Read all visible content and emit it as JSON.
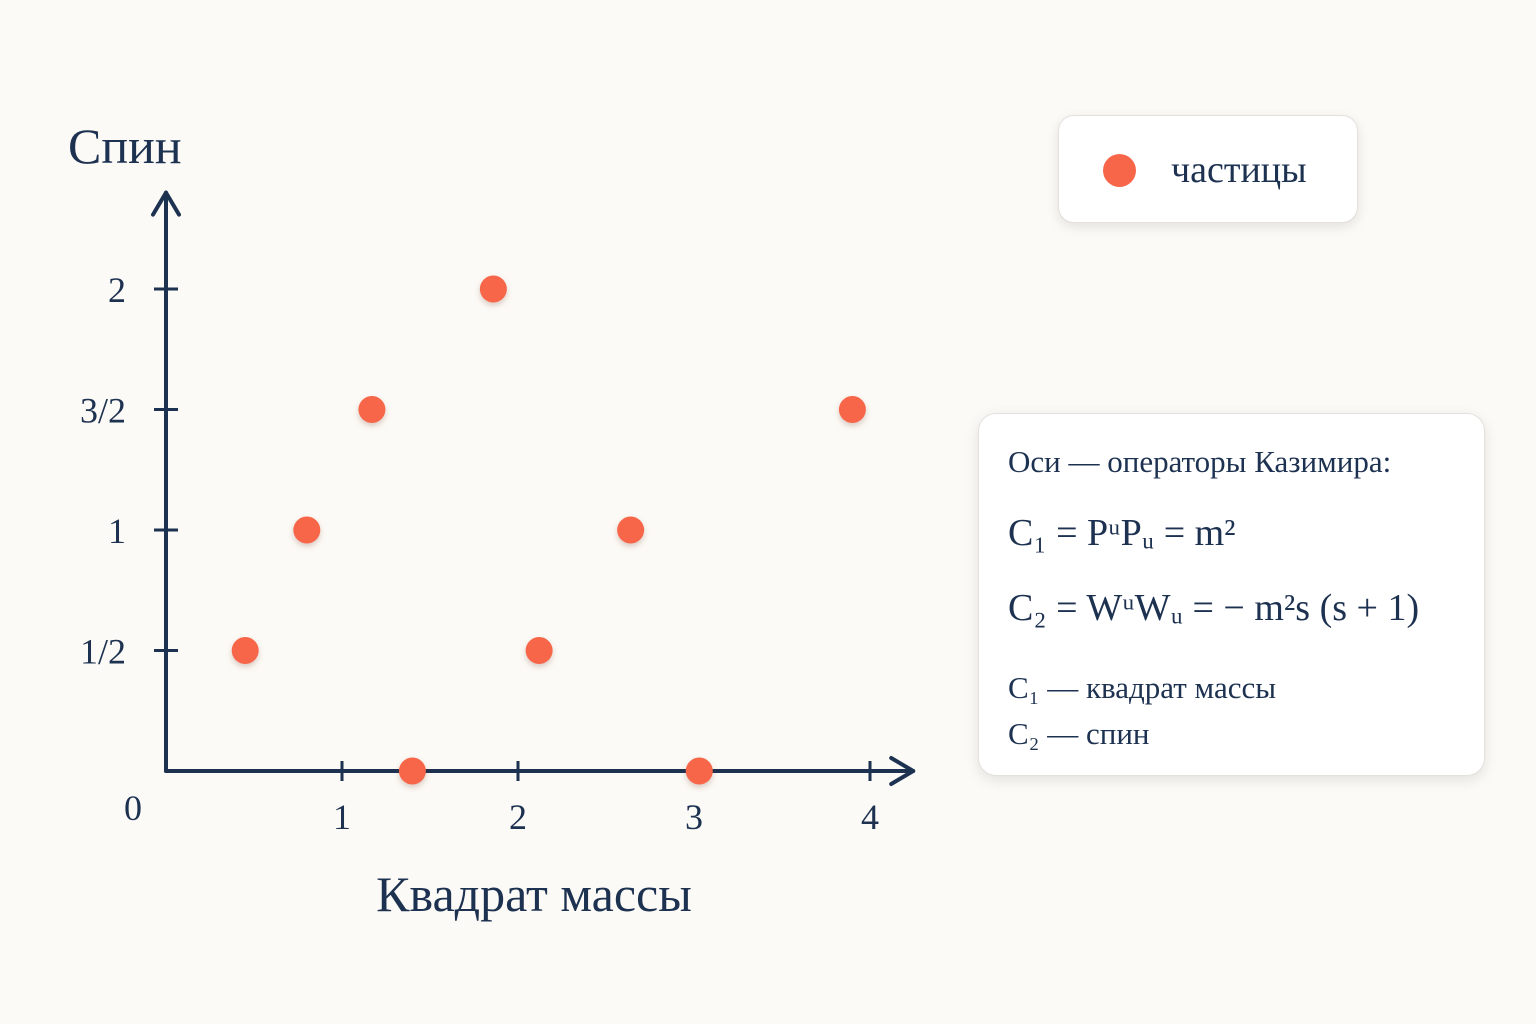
{
  "chart_data": {
    "type": "scatter",
    "xlabel": "Квадрат массы",
    "ylabel": "Спин",
    "origin_label": "0",
    "xlim": [
      0,
      4.2
    ],
    "ylim": [
      0,
      2.4
    ],
    "x_ticks": [
      {
        "value": 1,
        "label": "1"
      },
      {
        "value": 2,
        "label": "2"
      },
      {
        "value": 3,
        "label": "3"
      },
      {
        "value": 4,
        "label": "4"
      }
    ],
    "y_ticks": [
      {
        "value": 0.5,
        "label": "1/2"
      },
      {
        "value": 1,
        "label": "1"
      },
      {
        "value": 1.5,
        "label": "3/2"
      },
      {
        "value": 2,
        "label": "2"
      }
    ],
    "series": [
      {
        "name": "частицы",
        "color": "#f8664a",
        "points": [
          {
            "x": 0.45,
            "y": 0.5
          },
          {
            "x": 0.8,
            "y": 1
          },
          {
            "x": 1.17,
            "y": 1.5
          },
          {
            "x": 1.4,
            "y": 0
          },
          {
            "x": 1.86,
            "y": 2
          },
          {
            "x": 2.12,
            "y": 0.5
          },
          {
            "x": 2.64,
            "y": 1
          },
          {
            "x": 3.03,
            "y": 0
          },
          {
            "x": 3.9,
            "y": 1.5
          }
        ]
      }
    ],
    "legend_position": "top-right",
    "grid": false
  },
  "legend": {
    "label": "частицы"
  },
  "formula_box": {
    "heading": "Оси — операторы Казимира:",
    "formula_1": "C₁ = PᵘPᵤ = m²",
    "formula_2": "C₂ = WᵘWᵤ = − m²s (s + 1)",
    "note_1": "C₁ — квадрат массы",
    "note_2": "C₂ — спин"
  }
}
